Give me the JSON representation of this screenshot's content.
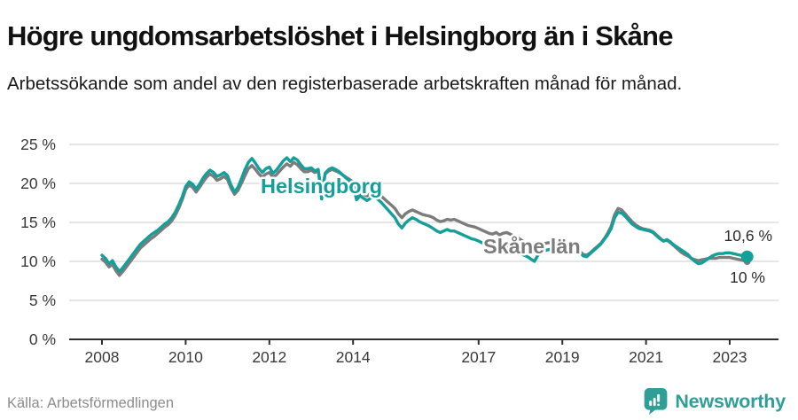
{
  "header": {
    "title": "Högre ungdomsarbetslöshet i Helsingborg än i Skåne",
    "subtitle": "Arbetssökande som andel av den registerbaserade arbetskraften månad för månad."
  },
  "footer": {
    "source": "Källa: Arbetsförmedlingen",
    "brand": "Newsworthy",
    "brand_icon": "bar-chart-speech-bubble-icon"
  },
  "colors": {
    "helsingborg": "#14a099",
    "skane": "#7c7c7c",
    "gridline": "#dedede",
    "axis": "#2f2f2f",
    "annotation": "#2b2b2b",
    "axis_label": "#3a3a3a",
    "brand": "#2f9e96"
  },
  "chart_data": {
    "type": "line",
    "unit": "%",
    "frequency": "monthly",
    "start": "2008-01",
    "end": "2023-06",
    "ylim": [
      0,
      25
    ],
    "grid": "horizontal",
    "legend_position": "inline-labels",
    "y_ticks": [
      0,
      5,
      10,
      15,
      20,
      25
    ],
    "y_tick_labels": [
      "0 %",
      "5 %",
      "10 %",
      "15 %",
      "20 %",
      "25 %"
    ],
    "x_tick_years": [
      2008,
      2010,
      2012,
      2014,
      2017,
      2019,
      2021,
      2023
    ],
    "x_tick_labels": [
      "2008",
      "2010",
      "2012",
      "2014",
      "2017",
      "2019",
      "2021",
      "2023"
    ],
    "series": [
      {
        "name": "Helsingborg",
        "color": "#14a099",
        "end_annotation": "10,6 %",
        "end_value": 10.6,
        "values": [
          10.8,
          10.4,
          9.7,
          10.1,
          9.3,
          8.7,
          9.2,
          9.8,
          10.4,
          11.0,
          11.6,
          12.2,
          12.6,
          13.0,
          13.4,
          13.7,
          14.0,
          14.4,
          14.8,
          15.1,
          15.6,
          16.3,
          17.2,
          18.3,
          19.6,
          20.2,
          19.9,
          19.3,
          19.9,
          20.7,
          21.3,
          21.7,
          21.4,
          20.9,
          21.1,
          21.4,
          21.0,
          19.8,
          18.9,
          19.5,
          20.6,
          21.8,
          22.7,
          23.2,
          22.6,
          21.9,
          21.4,
          21.9,
          22.1,
          21.3,
          21.7,
          22.3,
          22.9,
          23.3,
          22.8,
          23.3,
          23.0,
          22.4,
          21.9,
          21.9,
          22.0,
          21.6,
          21.8,
          18.0,
          21.3,
          21.8,
          22.0,
          21.8,
          21.5,
          21.1,
          20.7,
          20.3,
          19.9,
          17.9,
          18.4,
          18.1,
          17.8,
          18.1,
          18.4,
          18.0,
          17.6,
          17.1,
          16.6,
          16.1,
          15.6,
          14.8,
          14.3,
          14.9,
          15.3,
          15.6,
          15.4,
          15.1,
          14.9,
          14.7,
          14.5,
          14.2,
          13.9,
          13.7,
          13.9,
          14.1,
          13.9,
          13.9,
          13.7,
          13.5,
          13.3,
          13.1,
          12.9,
          12.8,
          12.6,
          12.4,
          12.2,
          12.0,
          11.8,
          11.9,
          11.1,
          11.6,
          11.8,
          11.6,
          11.4,
          11.2,
          11.0,
          10.8,
          10.6,
          10.3,
          10.0,
          10.8,
          11.2,
          11.4,
          11.5,
          11.6,
          11.7,
          11.8,
          11.6,
          11.9,
          12.1,
          12.0,
          11.6,
          11.2,
          10.7,
          10.6,
          11.0,
          11.4,
          11.8,
          12.2,
          12.8,
          13.4,
          14.2,
          15.6,
          16.3,
          16.2,
          15.8,
          15.3,
          14.8,
          14.5,
          14.2,
          14.1,
          14.0,
          13.9,
          13.7,
          13.3,
          12.9,
          12.6,
          12.8,
          12.5,
          12.1,
          11.8,
          11.5,
          11.2,
          10.9,
          10.4,
          10.0,
          9.7,
          9.8,
          10.1,
          10.4,
          10.7,
          10.9,
          11.0,
          11.0,
          11.1,
          11.1,
          11.0,
          10.9,
          10.8,
          10.7,
          10.6
        ]
      },
      {
        "name": "Skåne län",
        "color": "#7c7c7c",
        "end_annotation": "10 %",
        "end_value": 10.0,
        "values": [
          10.3,
          9.9,
          9.3,
          9.6,
          8.8,
          8.2,
          8.7,
          9.3,
          9.9,
          10.5,
          11.1,
          11.7,
          12.1,
          12.5,
          12.9,
          13.2,
          13.6,
          14.0,
          14.4,
          14.7,
          15.2,
          15.9,
          16.8,
          17.9,
          19.2,
          19.8,
          19.5,
          18.9,
          19.5,
          20.2,
          20.8,
          21.2,
          20.9,
          20.4,
          20.6,
          20.9,
          20.5,
          19.4,
          18.6,
          19.1,
          20.0,
          21.0,
          21.9,
          22.3,
          21.8,
          21.2,
          20.8,
          21.2,
          21.4,
          20.8,
          21.1,
          21.6,
          22.1,
          22.5,
          22.2,
          22.7,
          22.4,
          21.9,
          21.5,
          21.5,
          21.7,
          21.4,
          21.6,
          19.0,
          21.2,
          21.6,
          21.8,
          21.6,
          21.4,
          21.1,
          20.8,
          20.5,
          20.2,
          18.3,
          18.8,
          18.6,
          18.4,
          18.7,
          19.0,
          18.7,
          18.4,
          18.0,
          17.6,
          17.2,
          16.8,
          16.1,
          15.6,
          16.1,
          16.4,
          16.6,
          16.4,
          16.2,
          16.0,
          15.9,
          15.8,
          15.6,
          15.3,
          15.1,
          15.2,
          15.4,
          15.3,
          15.4,
          15.2,
          15.0,
          14.8,
          14.6,
          14.5,
          14.4,
          14.2,
          14.0,
          13.8,
          13.6,
          13.5,
          13.7,
          13.4,
          13.6,
          13.7,
          13.5,
          13.3,
          13.1,
          12.8,
          12.5,
          12.2,
          12.0,
          11.8,
          12.0,
          12.2,
          12.3,
          12.4,
          12.4,
          12.3,
          12.2,
          12.0,
          12.1,
          12.2,
          12.0,
          11.7,
          11.3,
          10.9,
          10.8,
          11.1,
          11.5,
          11.9,
          12.3,
          12.9,
          13.6,
          14.5,
          16.0,
          16.8,
          16.6,
          16.1,
          15.6,
          15.1,
          14.7,
          14.4,
          14.2,
          14.1,
          14.0,
          13.8,
          13.4,
          13.0,
          12.6,
          12.7,
          12.4,
          12.0,
          11.6,
          11.2,
          10.9,
          10.7,
          10.4,
          10.2,
          10.1,
          10.2,
          10.3,
          10.4,
          10.4,
          10.4,
          10.5,
          10.5,
          10.5,
          10.5,
          10.4,
          10.3,
          10.2,
          10.1,
          10.0
        ]
      }
    ]
  }
}
